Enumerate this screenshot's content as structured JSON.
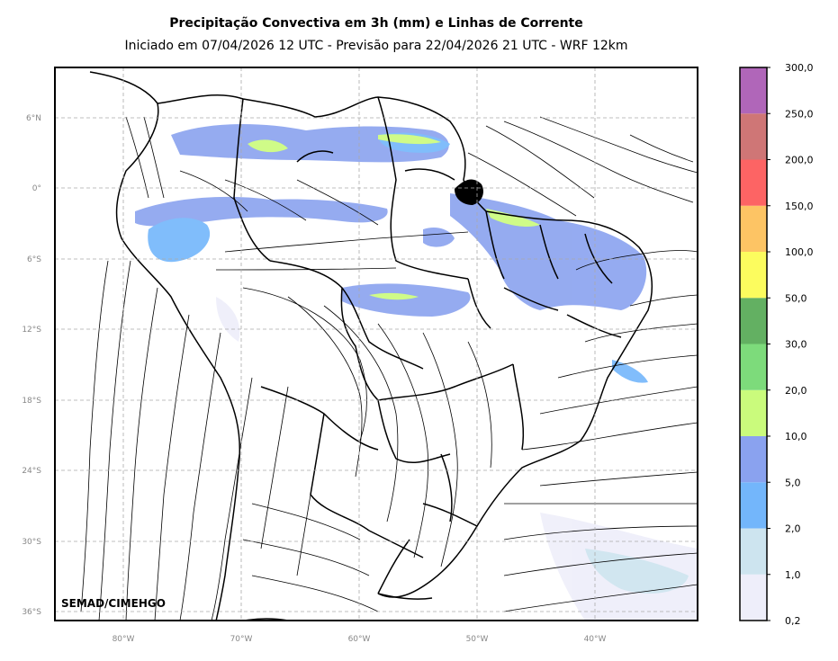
{
  "header": {
    "title": "Precipitação Convectiva em 3h (mm) e Linhas de Corrente",
    "subtitle": "Iniciado em 07/04/2026 12 UTC - Previsão para 22/04/2026 21 UTC - WRF 12km"
  },
  "map": {
    "credit": "SEMAD/CIMEHGO",
    "lat_labels": [
      "6°N",
      "0°",
      "6°S",
      "12°S",
      "18°S",
      "24°S",
      "30°S",
      "36°S"
    ],
    "lon_labels": [
      "80°W",
      "70°W",
      "60°W",
      "50°W",
      "40°W"
    ],
    "grid": true
  },
  "colorbar": {
    "labels": [
      "0,2",
      "1,0",
      "2,0",
      "5,0",
      "10,0",
      "20,0",
      "30,0",
      "50,0",
      "100,0",
      "150,0",
      "200,0",
      "250,0",
      "300,0"
    ],
    "colors": [
      "#eeeefa",
      "#cde4ef",
      "#73b6fb",
      "#8aa2ef",
      "#cafb7c",
      "#7ddb7b",
      "#63b062",
      "#fcfc5e",
      "#fdc464",
      "#fd6464",
      "#cf7676",
      "#b066b9"
    ]
  }
}
